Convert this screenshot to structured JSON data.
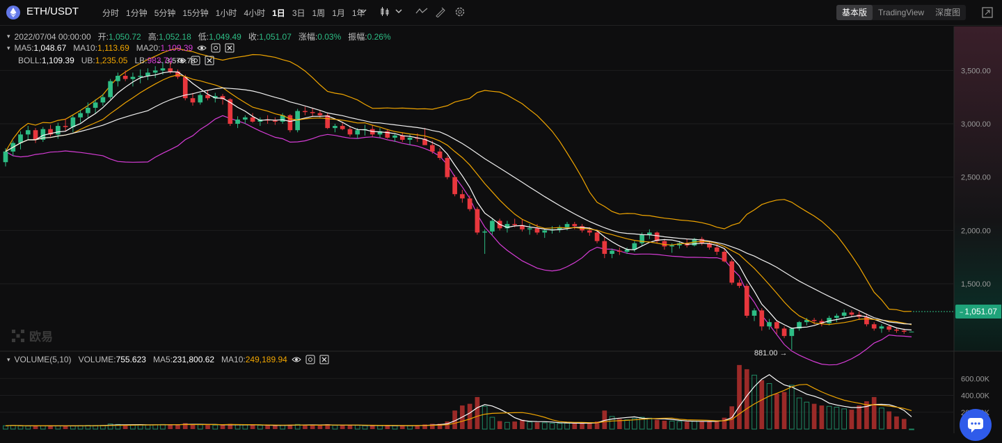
{
  "header": {
    "pair": "ETH/USDT",
    "intervals": [
      "分时",
      "1分钟",
      "5分钟",
      "15分钟",
      "1小时",
      "4小时",
      "1日",
      "3日",
      "1周",
      "1月",
      "1年"
    ],
    "active_interval": "1日",
    "modes": [
      "基本版",
      "TradingView",
      "深度图"
    ],
    "active_mode": "基本版"
  },
  "ohlc_row": {
    "date": "2022/07/04 00:00:00",
    "open_label": "开:",
    "open": "1,050.72",
    "high_label": "高:",
    "high": "1,052.18",
    "low_label": "低:",
    "low": "1,049.49",
    "close_label": "收:",
    "close": "1,051.07",
    "change_label": "涨幅:",
    "change": "0.03%",
    "amp_label": "振幅:",
    "amp": "0.26%"
  },
  "ma_row": {
    "ma5_label": "MA5:",
    "ma5": "1,048.67",
    "ma10_label": "MA10:",
    "ma10": "1,113.69",
    "ma20_label": "MA20:",
    "ma20": "1,109.39"
  },
  "boll_row": {
    "boll_label": "BOLL:",
    "boll": "1,109.39",
    "ub_label": "UB:",
    "ub": "1,235.05",
    "lb_label": "LB:",
    "lb": "983.74"
  },
  "volume_row": {
    "title": "VOLUME(5,10)",
    "vol_label": "VOLUME:",
    "vol": "755.623",
    "ma5_label": "MA5:",
    "ma5": "231,800.62",
    "ma10_label": "MA10:",
    "ma10": "249,189.94"
  },
  "annotations": {
    "high_marker": "← 3,579.78",
    "low_marker": "881.00 →"
  },
  "last_price": "1,051.07",
  "watermark": "欧易",
  "colors": {
    "up": "#2dbd85",
    "down": "#e8373d",
    "ma5": "#ffffff",
    "ma10": "#f0a500",
    "ma20": "#d63cd6",
    "background": "#0e0e0f"
  },
  "chart_data": {
    "type": "candlestick",
    "price_axis": {
      "ticks": [
        3500,
        3000,
        2500,
        2000,
        1500
      ],
      "tick_labels": [
        "3,500.00",
        "3,000.00",
        "2,500.00",
        "2,000.00",
        "1,500.00"
      ],
      "ylim": [
        900,
        3900
      ]
    },
    "volume_axis": {
      "ticks": [
        600000,
        400000,
        200000
      ],
      "tick_labels": [
        "600.00K",
        "400.00K",
        "200.00K"
      ],
      "ylim": [
        0,
        800000
      ]
    },
    "candles": [
      [
        2640,
        2770,
        2600,
        2740,
        40000
      ],
      [
        2740,
        2840,
        2700,
        2820,
        45000
      ],
      [
        2820,
        2930,
        2760,
        2900,
        38000
      ],
      [
        2900,
        2980,
        2850,
        2940,
        36000
      ],
      [
        2940,
        2960,
        2820,
        2850,
        42000
      ],
      [
        2850,
        2970,
        2830,
        2950,
        40000
      ],
      [
        2950,
        2990,
        2880,
        2900,
        39000
      ],
      [
        2900,
        3010,
        2860,
        2980,
        37000
      ],
      [
        2980,
        3050,
        2930,
        2970,
        35000
      ],
      [
        2970,
        3080,
        2920,
        3060,
        40000
      ],
      [
        3060,
        3130,
        3010,
        3100,
        42000
      ],
      [
        3100,
        3200,
        3060,
        3150,
        44000
      ],
      [
        3150,
        3230,
        3100,
        3200,
        43000
      ],
      [
        3200,
        3280,
        3170,
        3250,
        45000
      ],
      [
        3250,
        3420,
        3230,
        3400,
        60000
      ],
      [
        3400,
        3480,
        3350,
        3450,
        55000
      ],
      [
        3450,
        3500,
        3400,
        3420,
        50000
      ],
      [
        3420,
        3480,
        3350,
        3440,
        48000
      ],
      [
        3440,
        3510,
        3380,
        3450,
        52000
      ],
      [
        3450,
        3520,
        3410,
        3480,
        49000
      ],
      [
        3480,
        3540,
        3430,
        3500,
        51000
      ],
      [
        3500,
        3580,
        3460,
        3520,
        55000
      ],
      [
        3520,
        3579.78,
        3470,
        3490,
        53000
      ],
      [
        3490,
        3510,
        3420,
        3440,
        50000
      ],
      [
        3440,
        3460,
        3220,
        3240,
        70000
      ],
      [
        3240,
        3290,
        3170,
        3200,
        58000
      ],
      [
        3200,
        3290,
        3180,
        3270,
        52000
      ],
      [
        3270,
        3310,
        3220,
        3240,
        48000
      ],
      [
        3240,
        3290,
        3200,
        3260,
        47000
      ],
      [
        3260,
        3280,
        3180,
        3230,
        46000
      ],
      [
        3230,
        3240,
        2980,
        3000,
        62000
      ],
      [
        3000,
        3070,
        2960,
        3040,
        50000
      ],
      [
        3040,
        3080,
        3000,
        3060,
        48000
      ],
      [
        3060,
        3100,
        3010,
        3020,
        45000
      ],
      [
        3020,
        3060,
        2980,
        3040,
        44000
      ],
      [
        3040,
        3080,
        3000,
        3030,
        43000
      ],
      [
        3030,
        3060,
        2990,
        3020,
        42000
      ],
      [
        3020,
        3100,
        3000,
        3080,
        46000
      ],
      [
        3080,
        3090,
        2920,
        2940,
        52000
      ],
      [
        2940,
        3140,
        2920,
        3120,
        55000
      ],
      [
        3120,
        3160,
        3080,
        3110,
        48000
      ],
      [
        3110,
        3150,
        3070,
        3100,
        46000
      ],
      [
        3100,
        3130,
        3060,
        3080,
        44000
      ],
      [
        3080,
        3100,
        2950,
        2960,
        58000
      ],
      [
        2960,
        3000,
        2920,
        2980,
        44000
      ],
      [
        2980,
        3010,
        2940,
        2950,
        42000
      ],
      [
        2950,
        2980,
        2880,
        2900,
        46000
      ],
      [
        2900,
        2960,
        2860,
        2940,
        44000
      ],
      [
        2940,
        2990,
        2890,
        2950,
        41000
      ],
      [
        2950,
        2990,
        2880,
        2900,
        43000
      ],
      [
        2900,
        2960,
        2870,
        2930,
        40000
      ],
      [
        2930,
        2950,
        2860,
        2870,
        42000
      ],
      [
        2870,
        2910,
        2830,
        2890,
        40000
      ],
      [
        2890,
        2920,
        2830,
        2850,
        41000
      ],
      [
        2850,
        2900,
        2800,
        2870,
        40000
      ],
      [
        2870,
        2910,
        2830,
        2860,
        42000
      ],
      [
        2860,
        2960,
        2800,
        2800,
        55000
      ],
      [
        2800,
        2840,
        2720,
        2740,
        62000
      ],
      [
        2740,
        2770,
        2660,
        2680,
        64000
      ],
      [
        2680,
        2700,
        2480,
        2500,
        90000
      ],
      [
        2500,
        2520,
        2320,
        2340,
        220000
      ],
      [
        2340,
        2380,
        2260,
        2300,
        280000
      ],
      [
        2300,
        2330,
        2180,
        2200,
        300000
      ],
      [
        2200,
        2220,
        1960,
        1980,
        380000
      ],
      [
        1980,
        2010,
        1780,
        1990,
        270000
      ],
      [
        1990,
        2110,
        1960,
        2090,
        140000
      ],
      [
        2090,
        2110,
        2000,
        2020,
        95000
      ],
      [
        2020,
        2090,
        1980,
        2060,
        80000
      ],
      [
        2060,
        2110,
        2030,
        2050,
        90000
      ],
      [
        2050,
        2100,
        1990,
        2010,
        110000
      ],
      [
        2010,
        2060,
        1960,
        2020,
        85000
      ],
      [
        2020,
        2060,
        1960,
        1980,
        80000
      ],
      [
        1980,
        2020,
        1930,
        2000,
        75000
      ],
      [
        2000,
        2040,
        1970,
        2010,
        70000
      ],
      [
        2010,
        2050,
        1980,
        2030,
        68000
      ],
      [
        2030,
        2080,
        2000,
        2060,
        72000
      ],
      [
        2060,
        2080,
        2010,
        2040,
        70000
      ],
      [
        2040,
        2060,
        1980,
        2000,
        72000
      ],
      [
        2000,
        2030,
        1950,
        1980,
        68000
      ],
      [
        1980,
        2000,
        1880,
        1900,
        90000
      ],
      [
        1900,
        1940,
        1740,
        1780,
        220000
      ],
      [
        1780,
        1830,
        1740,
        1810,
        150000
      ],
      [
        1810,
        1840,
        1770,
        1800,
        120000
      ],
      [
        1800,
        1840,
        1780,
        1820,
        110000
      ],
      [
        1820,
        1900,
        1800,
        1880,
        125000
      ],
      [
        1880,
        1980,
        1860,
        1960,
        140000
      ],
      [
        1960,
        2010,
        1920,
        1980,
        130000
      ],
      [
        1980,
        1990,
        1880,
        1900,
        110000
      ],
      [
        1900,
        1920,
        1820,
        1850,
        100000
      ],
      [
        1850,
        1880,
        1790,
        1860,
        95000
      ],
      [
        1860,
        1900,
        1830,
        1880,
        90000
      ],
      [
        1880,
        1920,
        1840,
        1860,
        88000
      ],
      [
        1860,
        1930,
        1850,
        1920,
        95000
      ],
      [
        1920,
        1940,
        1860,
        1880,
        92000
      ],
      [
        1880,
        1900,
        1820,
        1840,
        90000
      ],
      [
        1840,
        1870,
        1770,
        1800,
        95000
      ],
      [
        1800,
        1830,
        1700,
        1710,
        135000
      ],
      [
        1710,
        1730,
        1490,
        1510,
        270000
      ],
      [
        1510,
        1540,
        1460,
        1480,
        760000
      ],
      [
        1480,
        1500,
        1180,
        1200,
        710000
      ],
      [
        1200,
        1270,
        1150,
        1250,
        640000
      ],
      [
        1250,
        1270,
        1060,
        1100,
        580000
      ],
      [
        1100,
        1170,
        1070,
        1140,
        540000
      ],
      [
        1140,
        1160,
        1030,
        1080,
        420000
      ],
      [
        1080,
        1100,
        990,
        1010,
        440000
      ],
      [
        1010,
        1090,
        881,
        1080,
        520000
      ],
      [
        1080,
        1150,
        1060,
        1140,
        370000
      ],
      [
        1140,
        1180,
        1110,
        1160,
        320000
      ],
      [
        1160,
        1180,
        1120,
        1150,
        300000
      ],
      [
        1150,
        1170,
        1100,
        1130,
        280000
      ],
      [
        1130,
        1200,
        1110,
        1180,
        270000
      ],
      [
        1180,
        1220,
        1140,
        1200,
        260000
      ],
      [
        1200,
        1260,
        1180,
        1230,
        240000
      ],
      [
        1230,
        1250,
        1190,
        1210,
        230000
      ],
      [
        1210,
        1240,
        1160,
        1190,
        280000
      ],
      [
        1190,
        1220,
        1100,
        1120,
        330000
      ],
      [
        1120,
        1140,
        1060,
        1080,
        380000
      ],
      [
        1080,
        1120,
        1040,
        1100,
        250000
      ],
      [
        1100,
        1110,
        1050,
        1070,
        210000
      ],
      [
        1070,
        1090,
        1040,
        1060,
        150000
      ],
      [
        1060,
        1080,
        1030,
        1050,
        120000
      ],
      [
        1050.72,
        1052.18,
        1049.49,
        1051.07,
        756
      ]
    ]
  }
}
